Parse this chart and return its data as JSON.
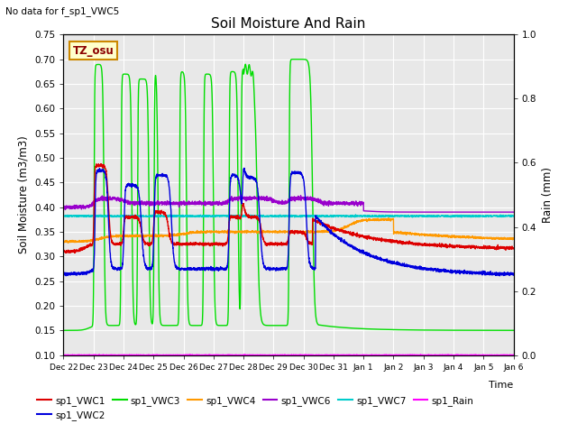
{
  "title": "Soil Moisture And Rain",
  "top_left_note": "No data for f_sp1_VWC5",
  "annotation_text": "TZ_osu",
  "ylabel_left": "Soil Moisture (m3/m3)",
  "ylabel_right": "Rain (mm)",
  "xlabel": "Time",
  "ylim_left": [
    0.1,
    0.75
  ],
  "ylim_right": [
    0.0,
    1.0
  ],
  "background_color": "#e8e8e8",
  "series": {
    "sp1_VWC1": {
      "color": "#dd0000",
      "lw": 1.0
    },
    "sp1_VWC2": {
      "color": "#0000dd",
      "lw": 1.0
    },
    "sp1_VWC3": {
      "color": "#00dd00",
      "lw": 1.0
    },
    "sp1_VWC4": {
      "color": "#ff9900",
      "lw": 1.0
    },
    "sp1_VWC6": {
      "color": "#9900cc",
      "lw": 1.0
    },
    "sp1_VWC7": {
      "color": "#00cccc",
      "lw": 1.0
    },
    "sp1_Rain": {
      "color": "#ff00ff",
      "lw": 1.0
    }
  },
  "xtick_labels": [
    "Dec 22",
    "Dec 23",
    "Dec 24",
    "Dec 25",
    "Dec 26",
    "Dec 27",
    "Dec 28",
    "Dec 29",
    "Dec 30",
    "Dec 31",
    "Jan 1",
    "Jan 2",
    "Jan 3",
    "Jan 4",
    "Jan 5",
    "Jan 6"
  ],
  "yticks_left": [
    0.1,
    0.15,
    0.2,
    0.25,
    0.3,
    0.35,
    0.4,
    0.45,
    0.5,
    0.55,
    0.6,
    0.65,
    0.7,
    0.75
  ],
  "yticks_right": [
    0.0,
    0.2,
    0.4,
    0.6,
    0.8,
    1.0
  ]
}
